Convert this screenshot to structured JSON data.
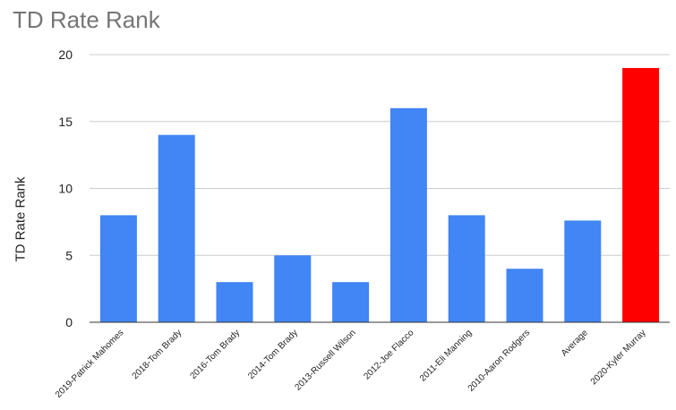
{
  "chart_data": {
    "type": "bar",
    "title": "TD Rate Rank",
    "xlabel": "",
    "ylabel": "TD Rate Rank",
    "ylim": [
      0,
      20
    ],
    "yticks": [
      "0",
      "5",
      "10",
      "15",
      "20"
    ],
    "grid": true,
    "legend": "none",
    "categories": [
      "2019-Patrick Mahomes",
      "2018-Tom Brady",
      "2016-Tom Brady",
      "2014-Tom Brady",
      "2013-Russell Wilson",
      "2012-Joe Flacco",
      "2011-Eli Manning",
      "2010-Aaron Rodgers",
      "Average",
      "2020-Kyler Murray"
    ],
    "values": [
      8,
      14,
      3,
      5,
      3,
      16,
      8,
      4,
      7.6,
      19
    ],
    "colors": [
      "#4285f4",
      "#4285f4",
      "#4285f4",
      "#4285f4",
      "#4285f4",
      "#4285f4",
      "#4285f4",
      "#4285f4",
      "#4285f4",
      "#ff0000"
    ]
  }
}
